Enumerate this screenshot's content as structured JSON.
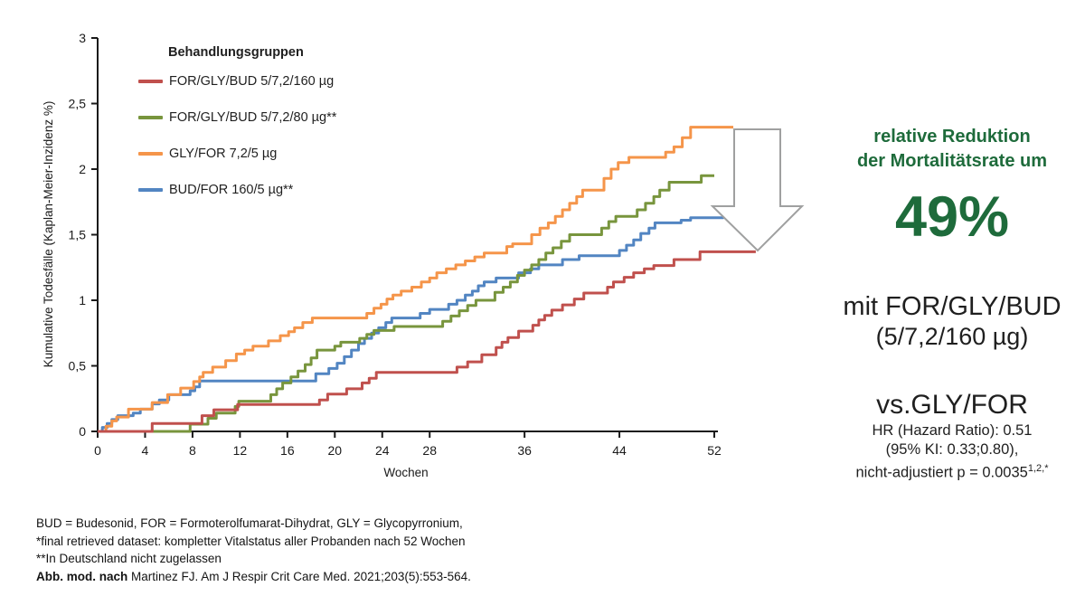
{
  "chart_data": {
    "type": "line",
    "subtype": "kaplan-meier-step",
    "xlabel": "Wochen",
    "ylabel": "Kumulative Todesfälle (Kaplan-Meier-Inzidenz %)",
    "xlim": [
      0,
      52
    ],
    "ylim": [
      0,
      3
    ],
    "grid": false,
    "legend_position": "top-left-inside",
    "legend_title": "Behandlungsgruppen",
    "xticks": [
      {
        "v": 0,
        "label": "0"
      },
      {
        "v": 4,
        "label": "4"
      },
      {
        "v": 8,
        "label": "8"
      },
      {
        "v": 12,
        "label": "12"
      },
      {
        "v": 16,
        "label": "16"
      },
      {
        "v": 20,
        "label": "20"
      },
      {
        "v": 24,
        "label": "24"
      },
      {
        "v": 28,
        "label": "28"
      },
      {
        "v": 36,
        "label": "36"
      },
      {
        "v": 44,
        "label": "44"
      },
      {
        "v": 52,
        "label": "52"
      }
    ],
    "yticks": [
      {
        "v": 0,
        "label": "0"
      },
      {
        "v": 0.5,
        "label": "0,5"
      },
      {
        "v": 1,
        "label": "1"
      },
      {
        "v": 1.5,
        "label": "1,5"
      },
      {
        "v": 2,
        "label": "2"
      },
      {
        "v": 2.5,
        "label": "2,5"
      },
      {
        "v": 3,
        "label": "3"
      }
    ],
    "series": [
      {
        "name": "FOR/GLY/BUD 5/7,2/160 µg",
        "color": "#C0504D",
        "points": [
          [
            0,
            0
          ],
          [
            4.6,
            0.06
          ],
          [
            8.8,
            0.12
          ],
          [
            9.8,
            0.165
          ],
          [
            11.8,
            0.205
          ],
          [
            18.7,
            0.24
          ],
          [
            19.4,
            0.285
          ],
          [
            21,
            0.325
          ],
          [
            22.3,
            0.37
          ],
          [
            22.9,
            0.405
          ],
          [
            23.5,
            0.45
          ],
          [
            30.3,
            0.49
          ],
          [
            31.2,
            0.53
          ],
          [
            32.4,
            0.585
          ],
          [
            33.6,
            0.64
          ],
          [
            34.1,
            0.68
          ],
          [
            34.6,
            0.715
          ],
          [
            35.5,
            0.765
          ],
          [
            36.7,
            0.81
          ],
          [
            37.2,
            0.85
          ],
          [
            37.7,
            0.885
          ],
          [
            38.3,
            0.925
          ],
          [
            39.2,
            0.965
          ],
          [
            40.2,
            1.01
          ],
          [
            41,
            1.055
          ],
          [
            43,
            1.1
          ],
          [
            43.5,
            1.14
          ],
          [
            44.4,
            1.175
          ],
          [
            45.2,
            1.21
          ],
          [
            46.1,
            1.24
          ],
          [
            46.9,
            1.265
          ],
          [
            48.6,
            1.31
          ],
          [
            50.8,
            1.37
          ],
          [
            55.5,
            1.37
          ]
        ]
      },
      {
        "name": "FOR/GLY/BUD 5/7,2/80 µg**",
        "color": "#78953D",
        "points": [
          [
            0,
            0
          ],
          [
            7.8,
            0.055
          ],
          [
            9.3,
            0.1
          ],
          [
            10,
            0.14
          ],
          [
            11.6,
            0.19
          ],
          [
            11.9,
            0.23
          ],
          [
            14.6,
            0.28
          ],
          [
            15.1,
            0.325
          ],
          [
            15.6,
            0.37
          ],
          [
            16.3,
            0.415
          ],
          [
            16.9,
            0.46
          ],
          [
            17.5,
            0.51
          ],
          [
            18,
            0.56
          ],
          [
            18.5,
            0.62
          ],
          [
            20,
            0.65
          ],
          [
            20.5,
            0.68
          ],
          [
            22.1,
            0.71
          ],
          [
            22.7,
            0.74
          ],
          [
            23.3,
            0.77
          ],
          [
            25,
            0.8
          ],
          [
            29.1,
            0.84
          ],
          [
            29.8,
            0.88
          ],
          [
            30.5,
            0.92
          ],
          [
            31.2,
            0.96
          ],
          [
            31.9,
            1.0
          ],
          [
            33.5,
            1.06
          ],
          [
            34.2,
            1.1
          ],
          [
            34.8,
            1.14
          ],
          [
            35.4,
            1.19
          ],
          [
            36,
            1.23
          ],
          [
            36.6,
            1.27
          ],
          [
            37.2,
            1.31
          ],
          [
            37.8,
            1.36
          ],
          [
            38.4,
            1.4
          ],
          [
            39.1,
            1.45
          ],
          [
            39.8,
            1.5
          ],
          [
            42.5,
            1.55
          ],
          [
            43.1,
            1.6
          ],
          [
            43.7,
            1.64
          ],
          [
            45.5,
            1.69
          ],
          [
            46.2,
            1.74
          ],
          [
            46.9,
            1.79
          ],
          [
            47.4,
            1.84
          ],
          [
            48.2,
            1.9
          ],
          [
            50.9,
            1.95
          ],
          [
            52,
            1.95
          ]
        ]
      },
      {
        "name": "GLY/FOR 7,2/5 µg",
        "color": "#F5954A",
        "points": [
          [
            0,
            0
          ],
          [
            0.7,
            0.04
          ],
          [
            1.2,
            0.08
          ],
          [
            1.6,
            0.11
          ],
          [
            2.6,
            0.17
          ],
          [
            4.6,
            0.22
          ],
          [
            5.9,
            0.28
          ],
          [
            7,
            0.33
          ],
          [
            8.1,
            0.38
          ],
          [
            8.6,
            0.415
          ],
          [
            8.9,
            0.45
          ],
          [
            9.7,
            0.49
          ],
          [
            10.8,
            0.54
          ],
          [
            11.7,
            0.59
          ],
          [
            12.4,
            0.62
          ],
          [
            13.1,
            0.65
          ],
          [
            14.4,
            0.69
          ],
          [
            15.4,
            0.73
          ],
          [
            16.1,
            0.76
          ],
          [
            16.6,
            0.79
          ],
          [
            17.3,
            0.83
          ],
          [
            18.1,
            0.865
          ],
          [
            22.7,
            0.9
          ],
          [
            23.3,
            0.94
          ],
          [
            23.9,
            0.97
          ],
          [
            24.4,
            1.01
          ],
          [
            24.9,
            1.04
          ],
          [
            25.6,
            1.07
          ],
          [
            26.5,
            1.1
          ],
          [
            27.3,
            1.14
          ],
          [
            28,
            1.17
          ],
          [
            28.6,
            1.21
          ],
          [
            29.4,
            1.24
          ],
          [
            30.2,
            1.27
          ],
          [
            31,
            1.3
          ],
          [
            31.8,
            1.33
          ],
          [
            32.6,
            1.36
          ],
          [
            34.5,
            1.41
          ],
          [
            35,
            1.43
          ],
          [
            36.6,
            1.5
          ],
          [
            37.3,
            1.55
          ],
          [
            38,
            1.59
          ],
          [
            38.6,
            1.64
          ],
          [
            39.2,
            1.69
          ],
          [
            39.8,
            1.74
          ],
          [
            40.4,
            1.79
          ],
          [
            40.9,
            1.84
          ],
          [
            42.7,
            1.93
          ],
          [
            43.3,
            2.0
          ],
          [
            43.9,
            2.05
          ],
          [
            44.8,
            2.09
          ],
          [
            47.9,
            2.13
          ],
          [
            48.6,
            2.17
          ],
          [
            49.3,
            2.24
          ],
          [
            50,
            2.32
          ],
          [
            53.6,
            2.32
          ]
        ]
      },
      {
        "name": "BUD/FOR 160/5 µg**",
        "color": "#5285C2",
        "points": [
          [
            0,
            0
          ],
          [
            0.4,
            0.03
          ],
          [
            0.8,
            0.06
          ],
          [
            1.2,
            0.09
          ],
          [
            1.7,
            0.12
          ],
          [
            3,
            0.14
          ],
          [
            3.6,
            0.17
          ],
          [
            4.6,
            0.21
          ],
          [
            5.2,
            0.24
          ],
          [
            6,
            0.28
          ],
          [
            7.8,
            0.31
          ],
          [
            8.2,
            0.34
          ],
          [
            8.6,
            0.385
          ],
          [
            18.4,
            0.44
          ],
          [
            19.5,
            0.48
          ],
          [
            20.2,
            0.52
          ],
          [
            20.8,
            0.57
          ],
          [
            21.4,
            0.62
          ],
          [
            22,
            0.67
          ],
          [
            22.5,
            0.71
          ],
          [
            23.1,
            0.75
          ],
          [
            23.7,
            0.79
          ],
          [
            24.3,
            0.83
          ],
          [
            24.8,
            0.865
          ],
          [
            27.2,
            0.9
          ],
          [
            28,
            0.93
          ],
          [
            29.6,
            0.97
          ],
          [
            30.3,
            1.0
          ],
          [
            31,
            1.04
          ],
          [
            31.6,
            1.07
          ],
          [
            32.1,
            1.11
          ],
          [
            32.6,
            1.14
          ],
          [
            33.6,
            1.17
          ],
          [
            35.5,
            1.21
          ],
          [
            36.5,
            1.24
          ],
          [
            37.2,
            1.27
          ],
          [
            39.2,
            1.31
          ],
          [
            40.6,
            1.34
          ],
          [
            44,
            1.38
          ],
          [
            44.6,
            1.42
          ],
          [
            45.2,
            1.46
          ],
          [
            45.8,
            1.51
          ],
          [
            46.5,
            1.55
          ],
          [
            47,
            1.59
          ],
          [
            49.2,
            1.61
          ],
          [
            50,
            1.63
          ],
          [
            52.8,
            1.63
          ]
        ]
      }
    ],
    "annotation": {
      "type": "down-arrow",
      "fill": "#ffffff",
      "stroke": "#9FA0A0"
    }
  },
  "right_panel": {
    "heading_line1": "relative Reduktion",
    "heading_line2": "der Mortalitätsrate um",
    "big_percent": "49%",
    "with_line1": "mit FOR/GLY/BUD",
    "with_line2": "(5/7,2/160 µg)",
    "vs_line": "vs.GLY/FOR",
    "hr_line": "HR (Hazard Ratio): 0.51",
    "ci_line": "(95% KI: 0.33;0.80),",
    "pvalue_main": "nicht-adjustiert p = 0.0035",
    "pvalue_sup": "1,2,*",
    "accent_color": "#1E6B3B"
  },
  "footnotes": {
    "line1": "BUD = Budesonid, FOR = Formoterolfumarat-Dihydrat, GLY = Glycopyrronium,",
    "line2": "*final retrieved dataset: kompletter Vitalstatus aller Probanden nach 52 Wochen",
    "line3": "**In Deutschland nicht zugelassen",
    "source_prefix": "Abb. mod. nach ",
    "source_rest": "Martinez FJ. Am J Respir Crit Care Med. 2021;203(5):553-564."
  }
}
